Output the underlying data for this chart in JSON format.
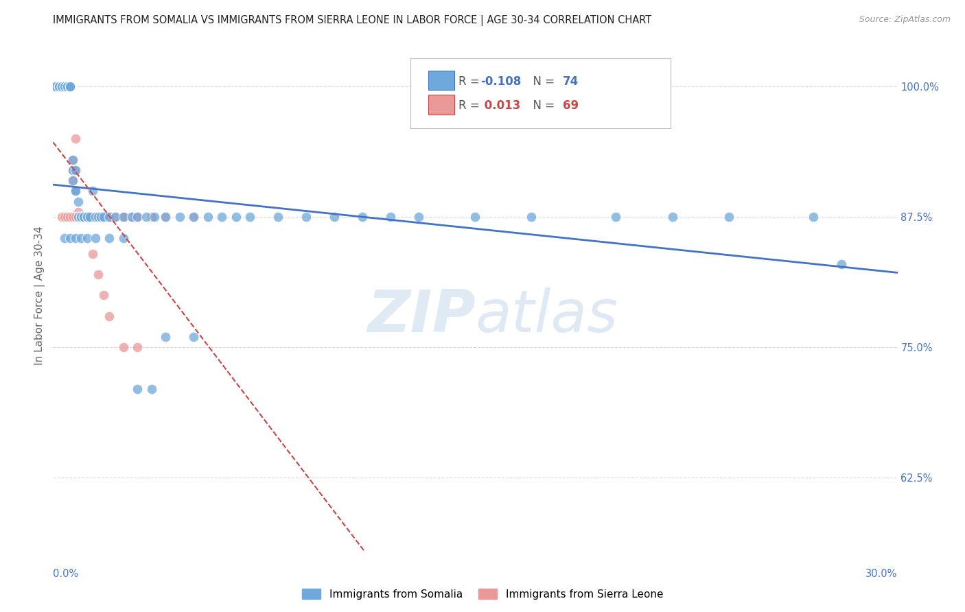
{
  "title": "IMMIGRANTS FROM SOMALIA VS IMMIGRANTS FROM SIERRA LEONE IN LABOR FORCE | AGE 30-34 CORRELATION CHART",
  "source": "Source: ZipAtlas.com",
  "ylabel": "In Labor Force | Age 30-34",
  "yticks": [
    62.5,
    75.0,
    87.5,
    100.0
  ],
  "xlim": [
    0.0,
    0.3
  ],
  "ylim": [
    0.555,
    1.045
  ],
  "somalia_color": "#6fa8dc",
  "sierra_leone_color": "#ea9999",
  "somalia_line_color": "#4472c4",
  "sierra_leone_line_color": "#cc4444",
  "somalia_R": -0.108,
  "somalia_N": 74,
  "sierra_leone_R": 0.013,
  "sierra_leone_N": 69,
  "somalia_scatter_x": [
    0.001,
    0.002,
    0.002,
    0.003,
    0.003,
    0.003,
    0.004,
    0.004,
    0.004,
    0.005,
    0.005,
    0.005,
    0.006,
    0.006,
    0.006,
    0.007,
    0.007,
    0.007,
    0.008,
    0.008,
    0.008,
    0.009,
    0.009,
    0.01,
    0.01,
    0.011,
    0.011,
    0.012,
    0.012,
    0.013,
    0.014,
    0.015,
    0.016,
    0.017,
    0.018,
    0.02,
    0.022,
    0.025,
    0.028,
    0.03,
    0.033,
    0.036,
    0.04,
    0.045,
    0.05,
    0.055,
    0.06,
    0.065,
    0.07,
    0.08,
    0.09,
    0.1,
    0.11,
    0.12,
    0.13,
    0.15,
    0.17,
    0.2,
    0.22,
    0.24,
    0.27,
    0.004,
    0.006,
    0.008,
    0.01,
    0.012,
    0.015,
    0.02,
    0.025,
    0.03,
    0.035,
    0.04,
    0.05,
    0.28
  ],
  "somalia_scatter_y": [
    1.0,
    1.0,
    1.0,
    1.0,
    1.0,
    1.0,
    1.0,
    1.0,
    1.0,
    1.0,
    1.0,
    1.0,
    1.0,
    1.0,
    1.0,
    0.93,
    0.92,
    0.91,
    0.9,
    0.92,
    0.9,
    0.89,
    0.875,
    0.875,
    0.875,
    0.875,
    0.875,
    0.875,
    0.875,
    0.875,
    0.9,
    0.875,
    0.875,
    0.875,
    0.875,
    0.875,
    0.875,
    0.875,
    0.875,
    0.875,
    0.875,
    0.875,
    0.875,
    0.875,
    0.875,
    0.875,
    0.875,
    0.875,
    0.875,
    0.875,
    0.875,
    0.875,
    0.875,
    0.875,
    0.875,
    0.875,
    0.875,
    0.875,
    0.875,
    0.875,
    0.875,
    0.855,
    0.855,
    0.855,
    0.855,
    0.855,
    0.855,
    0.855,
    0.855,
    0.71,
    0.71,
    0.76,
    0.76,
    0.83
  ],
  "sierra_leone_scatter_x": [
    0.001,
    0.002,
    0.002,
    0.003,
    0.003,
    0.003,
    0.004,
    0.004,
    0.004,
    0.005,
    0.005,
    0.005,
    0.006,
    0.006,
    0.006,
    0.007,
    0.007,
    0.007,
    0.008,
    0.008,
    0.008,
    0.009,
    0.009,
    0.01,
    0.01,
    0.011,
    0.011,
    0.012,
    0.012,
    0.013,
    0.014,
    0.015,
    0.016,
    0.017,
    0.018,
    0.02,
    0.022,
    0.025,
    0.028,
    0.03,
    0.035,
    0.003,
    0.004,
    0.005,
    0.006,
    0.007,
    0.008,
    0.009,
    0.01,
    0.011,
    0.012,
    0.013,
    0.014,
    0.015,
    0.016,
    0.017,
    0.018,
    0.02,
    0.025,
    0.03,
    0.035,
    0.04,
    0.05,
    0.014,
    0.016,
    0.018,
    0.02,
    0.025,
    0.03
  ],
  "sierra_leone_scatter_y": [
    1.0,
    1.0,
    1.0,
    1.0,
    1.0,
    1.0,
    1.0,
    1.0,
    1.0,
    1.0,
    1.0,
    1.0,
    1.0,
    1.0,
    1.0,
    0.93,
    0.92,
    0.91,
    0.95,
    0.92,
    0.9,
    0.88,
    0.875,
    0.875,
    0.875,
    0.875,
    0.875,
    0.875,
    0.875,
    0.875,
    0.875,
    0.875,
    0.875,
    0.875,
    0.875,
    0.875,
    0.875,
    0.875,
    0.875,
    0.875,
    0.875,
    0.875,
    0.875,
    0.875,
    0.875,
    0.875,
    0.875,
    0.875,
    0.875,
    0.875,
    0.875,
    0.875,
    0.875,
    0.875,
    0.875,
    0.875,
    0.875,
    0.875,
    0.875,
    0.875,
    0.875,
    0.875,
    0.875,
    0.84,
    0.82,
    0.8,
    0.78,
    0.75,
    0.75
  ],
  "background_color": "#ffffff",
  "grid_color": "#d8d8d8",
  "watermark_color": "#c8dff0",
  "watermark_zip": "ZIP",
  "watermark_atlas": "atlas"
}
